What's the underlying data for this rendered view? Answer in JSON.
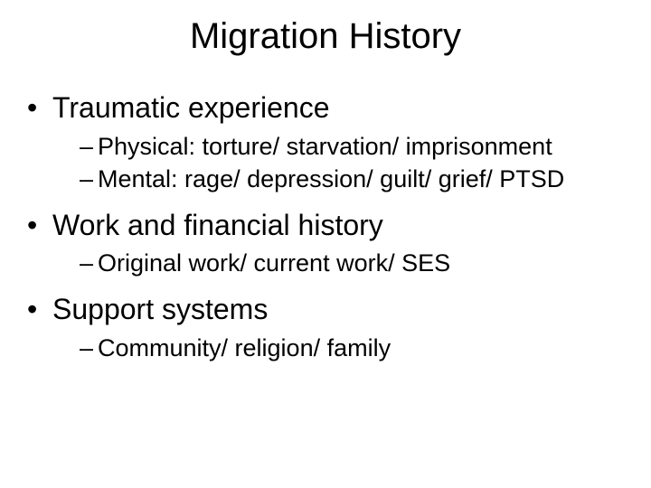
{
  "title": "Migration History",
  "bullets": {
    "b1": "Traumatic experience",
    "b1a": "Physical:  torture/ starvation/ imprisonment",
    "b1b": "Mental: rage/ depression/ guilt/ grief/ PTSD",
    "b2": "Work and financial history",
    "b2a": "Original work/ current work/ SES",
    "b3": "Support systems",
    "b3a": "Community/ religion/ family"
  },
  "styling": {
    "background_color": "#ffffff",
    "text_color": "#000000",
    "font_family": "Arial",
    "title_fontsize": 40,
    "level1_fontsize": 32,
    "level2_fontsize": 27,
    "slide_width": 720,
    "slide_height": 540
  }
}
